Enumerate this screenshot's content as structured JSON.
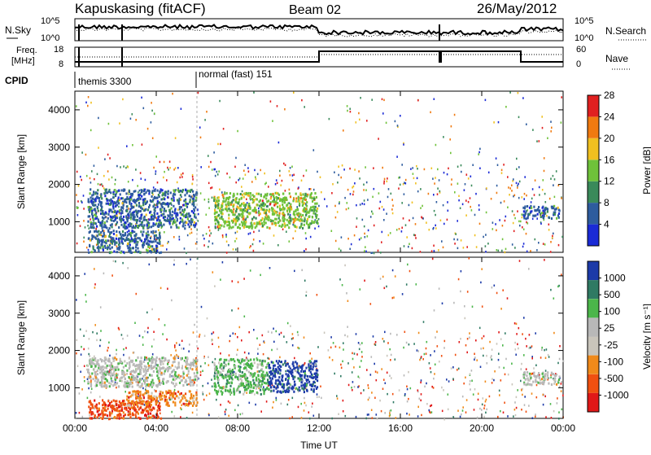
{
  "header": {
    "station": "Kapuskasing (fitACF)",
    "beam": "Beam 02",
    "date": "26/May/2012"
  },
  "strips": {
    "nsky_label": "N.Sky",
    "nsky_ticks": [
      "10^5",
      "10^0"
    ],
    "nsearch_label": "N.Search",
    "nsearch_ticks": [
      "10^5",
      "10^0"
    ],
    "freq_label_1": "Freq.",
    "freq_label_2": "[MHz]",
    "freq_ticks": [
      "18",
      "8"
    ],
    "nave_label": "Nave",
    "nave_ticks": [
      "60",
      "0"
    ],
    "cpid_label": "CPID",
    "cpid_segments": [
      "themis 3300",
      "normal (fast) 151"
    ]
  },
  "chart_data": [
    {
      "type": "heatmap",
      "panel": "power",
      "ylabel": "Slant Range [km]",
      "xlabel": "",
      "ylim": [
        180,
        4500
      ],
      "yticks": [
        "1000",
        "2000",
        "3000",
        "4000"
      ],
      "xticks": [
        "00:00",
        "04:00",
        "08:00",
        "12:00",
        "16:00",
        "20:00",
        "00:00"
      ],
      "xlim_hours": [
        0,
        24
      ],
      "colorbar_label": "Power [dB]",
      "colorbar_ticks": [
        "4",
        "8",
        "12",
        "16",
        "20",
        "24",
        "28"
      ],
      "colors": [
        "#1a2ad6",
        "#2e5c9e",
        "#3a8a5a",
        "#6fc23a",
        "#f0c020",
        "#f07a10",
        "#e02020"
      ],
      "regions": [
        {
          "t0": 0.6,
          "t1": 6.0,
          "r0": 850,
          "r1": 1900,
          "level": 1
        },
        {
          "t0": 0.6,
          "t1": 4.2,
          "r0": 200,
          "r1": 800,
          "level": 1
        },
        {
          "t0": 6.8,
          "t1": 11.9,
          "r0": 850,
          "r1": 1800,
          "level": 3
        },
        {
          "t0": 22.0,
          "t1": 23.8,
          "r0": 1100,
          "r1": 1450,
          "level": 1
        }
      ]
    },
    {
      "type": "heatmap",
      "panel": "velocity",
      "ylabel": "Slant Range [km]",
      "xlabel": "Time UT",
      "ylim": [
        180,
        4500
      ],
      "yticks": [
        "1000",
        "2000",
        "3000",
        "4000"
      ],
      "xticks": [
        "00:00",
        "04:00",
        "08:00",
        "12:00",
        "16:00",
        "20:00",
        "00:00"
      ],
      "xlim_hours": [
        0,
        24
      ],
      "colorbar_label": "Velocity [m s⁻¹]",
      "colorbar_ticks": [
        "1000",
        "500",
        "100",
        "25",
        "-25",
        "-100",
        "-500",
        "-1000"
      ],
      "colors": [
        "#1c3aa8",
        "#2f7a63",
        "#4bb64a",
        "#b8b8b8",
        "#c9c5bb",
        "#f08a1a",
        "#f05010",
        "#e01818"
      ],
      "regions": [
        {
          "t0": 0.6,
          "t1": 6.0,
          "r0": 1050,
          "r1": 1850,
          "level": 3
        },
        {
          "t0": 0.6,
          "t1": 4.2,
          "r0": 200,
          "r1": 700,
          "level": 6
        },
        {
          "t0": 2.5,
          "t1": 6.0,
          "r0": 550,
          "r1": 950,
          "level": 5
        },
        {
          "t0": 6.8,
          "t1": 9.5,
          "r0": 850,
          "r1": 1800,
          "level": 2
        },
        {
          "t0": 9.5,
          "t1": 11.9,
          "r0": 900,
          "r1": 1750,
          "level": 0
        },
        {
          "t0": 22.0,
          "t1": 23.8,
          "r0": 1100,
          "r1": 1450,
          "level": 3
        }
      ]
    }
  ]
}
